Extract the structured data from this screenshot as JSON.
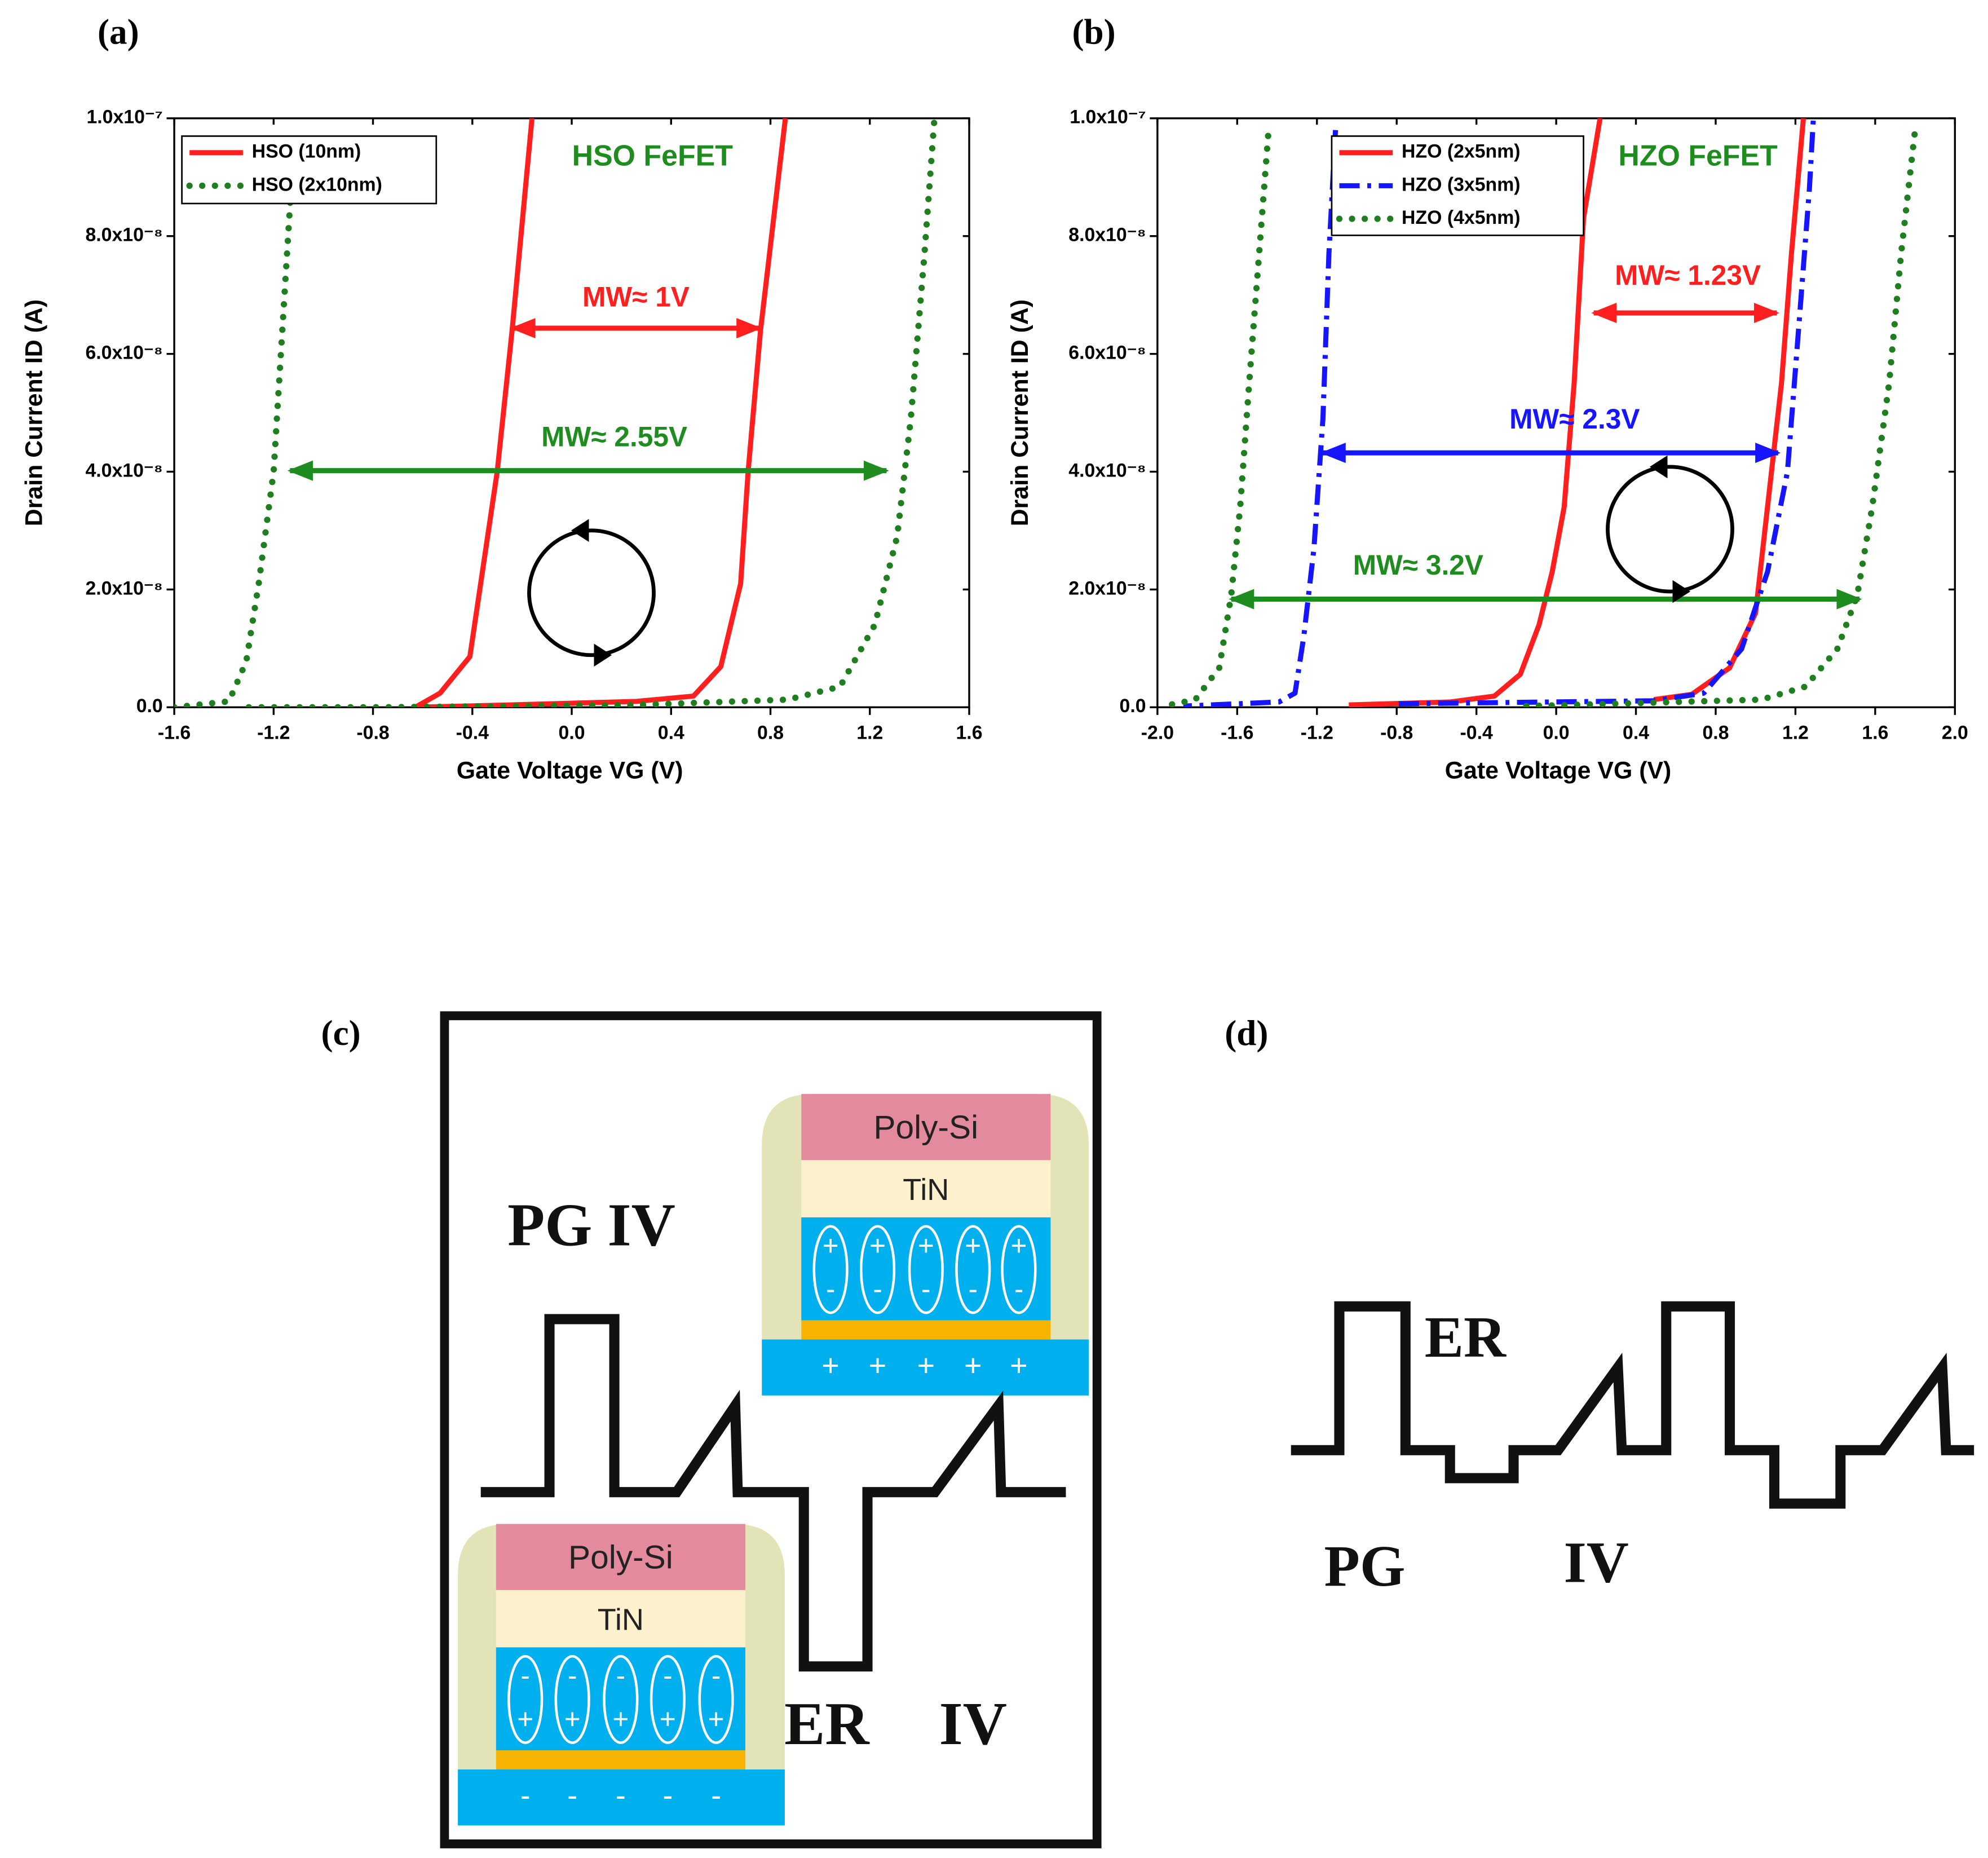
{
  "chart_data": [
    {
      "type": "line",
      "title": "(a)",
      "x_label": "Gate Voltage VG (V)",
      "y_label": "Drain Current ID (A)",
      "xlim": [
        -1.6,
        1.6
      ],
      "xticks": [
        -1.6,
        -1.2,
        -0.8,
        -0.4,
        {
          "value": 0,
          "label": "0.0"
        },
        0.4,
        0.8,
        1.2,
        1.6
      ],
      "ylim": [
        0,
        1e-07
      ],
      "yticks": [
        {
          "value": 0,
          "label": "0.0"
        },
        {
          "value": 2e-08,
          "label": "2.0x10⁻⁸"
        },
        {
          "value": 4e-08,
          "label": "4.0x10⁻⁸"
        },
        {
          "value": 6e-08,
          "label": "6.0x10⁻⁸"
        },
        {
          "value": 8e-08,
          "label": "8.0x10⁻⁸"
        },
        {
          "value": 1e-07,
          "label": "1.0x10⁻⁷"
        }
      ],
      "legend": "upper left",
      "series": [
        {
          "name": "HSO (10nm)",
          "color": "#ff1f1f",
          "style": "solid",
          "x": [
            -0.16,
            -0.24,
            -0.3,
            -0.41,
            -0.53,
            -0.63,
            -0.25,
            0.26,
            0.49,
            0.6,
            0.68,
            0.71,
            0.76,
            0.86
          ],
          "values": [
            1e-07,
            6.4e-08,
            4e-08,
            8.6e-09,
            2.4e-09,
            0,
            4e-10,
            1e-09,
            1.9e-09,
            6.9e-09,
            2.1e-08,
            4e-08,
            6.4e-08,
            1e-07
          ]
        },
        {
          "name": "HSO (2x10nm)",
          "color": "#1f7f1f",
          "style": "dotted",
          "x": [
            -1.6,
            -1.38,
            -1.31,
            -1.26,
            -1.2,
            -1.165,
            -1.13,
            null,
            -1.3,
            -0.77,
            0.26,
            0.87,
            1.08,
            1.22,
            1.31,
            1.365,
            1.42,
            1.46
          ],
          "values": [
            0,
            1e-09,
            7.8e-09,
            2.1e-08,
            4e-08,
            6.4e-08,
            8.8e-08,
            null,
            0,
            0,
            4e-10,
            1.3e-09,
            3.5e-09,
            1.4e-08,
            2.9e-08,
            4.9e-08,
            7.7e-08,
            1e-07
          ]
        }
      ],
      "annotations": [
        {
          "text": "HSO FeFET",
          "color": "#1e8c1e"
        },
        {
          "text": "MW≈ 1V",
          "color": "#ff1f1f"
        },
        {
          "text": "MW≈ 2.55V",
          "color": "#1e8c1e"
        }
      ]
    },
    {
      "type": "line",
      "title": "(b)",
      "x_label": "Gate Voltage VG (V)",
      "y_label": "Drain Current ID (A)",
      "xlim": [
        -2,
        2
      ],
      "xticks": [
        {
          "value": -2,
          "label": "-2.0"
        },
        -1.6,
        -1.2,
        -0.8,
        -0.4,
        {
          "value": 0,
          "label": "0.0"
        },
        0.4,
        0.8,
        1.2,
        1.6,
        {
          "value": 2,
          "label": "2.0"
        }
      ],
      "ylim": [
        0,
        1e-07
      ],
      "yticks": [
        {
          "value": 0,
          "label": "0.0"
        },
        {
          "value": 2e-08,
          "label": "2.0x10⁻⁸"
        },
        {
          "value": 4e-08,
          "label": "4.0x10⁻⁸"
        },
        {
          "value": 6e-08,
          "label": "6.0x10⁻⁸"
        },
        {
          "value": 8e-08,
          "label": "8.0x10⁻⁸"
        },
        {
          "value": 1e-07,
          "label": "1.0x10⁻⁷"
        }
      ],
      "legend": "upper left",
      "series": [
        {
          "name": "HZO (2x5nm)",
          "color": "#ff1f1f",
          "style": "solid",
          "x": [
            0.22,
            0.137,
            0.09,
            0.04,
            -0.02,
            -0.086,
            -0.18,
            -0.31,
            -0.53,
            -1.04,
            null,
            0.49,
            0.68,
            0.87,
            1.0,
            1.06,
            1.13,
            1.18,
            1.24
          ],
          "values": [
            1e-07,
            8.3e-08,
            5.5e-08,
            3.4e-08,
            2.3e-08,
            1.4e-08,
            5.6e-09,
            1.9e-09,
            9e-10,
            4e-10,
            null,
            1.3e-09,
            2.2e-09,
            6.7e-09,
            1.6e-08,
            3.4e-08,
            5.5e-08,
            7.7e-08,
            1e-07
          ]
        },
        {
          "name": "HZO (3x5nm)",
          "color": "#1515ff",
          "style": "dashdot",
          "x": [
            -1.107,
            -1.14,
            -1.17,
            -1.215,
            -1.266,
            -1.31,
            -1.39,
            -1.87,
            null,
            -0.79,
            0.49,
            0.74,
            0.93,
            1.06,
            1.16,
            1.22,
            1.27,
            1.29
          ],
          "values": [
            9.8e-08,
            7.7e-08,
            4.9e-08,
            2.7e-08,
            1.2e-08,
            2.4e-09,
            9e-10,
            2e-10,
            null,
            6e-10,
            1.1e-09,
            2.4e-09,
            9.9e-09,
            2.3e-08,
            4e-08,
            6.6e-08,
            8.8e-08,
            1e-07
          ]
        },
        {
          "name": "HZO (4x5nm)",
          "color": "#1f7f1f",
          "style": "dotted",
          "x": [
            -1.445,
            -1.49,
            -1.54,
            -1.585,
            -1.63,
            -1.69,
            -1.81,
            -1.97,
            null,
            -0.15,
            1.03,
            1.25,
            1.41,
            1.51,
            1.585,
            1.67,
            1.73,
            1.8
          ],
          "values": [
            9.7e-08,
            7.7e-08,
            5.5e-08,
            3.4e-08,
            1.9e-08,
            6.7e-09,
            1.3e-09,
            2e-10,
            null,
            2e-10,
            1.3e-09,
            3.5e-09,
            9.9e-09,
            1.9e-08,
            3.4e-08,
            5.5e-08,
            7.7e-08,
            9.8e-08
          ]
        }
      ],
      "annotations": [
        {
          "text": "HZO FeFET",
          "color": "#1e8c1e"
        },
        {
          "text": "MW≈ 1.23V",
          "color": "#ff1f1f"
        },
        {
          "text": "MW≈ 2.3V",
          "color": "#1515ff"
        },
        {
          "text": "MW≈ 3.2V",
          "color": "#1e8c1e"
        }
      ]
    }
  ],
  "diagram_c": {
    "title": "(c)",
    "labels": [
      "PG IV",
      "ER",
      "IV"
    ],
    "devices": [
      {
        "layers": [
          "Poly-Si",
          "TiN"
        ],
        "dipole": [
          "+",
          "-"
        ],
        "substrate": "+"
      },
      {
        "layers": [
          "Poly-Si",
          "TiN"
        ],
        "dipole": [
          "-",
          "+"
        ],
        "substrate": "-"
      }
    ]
  },
  "diagram_d": {
    "title": "(d)",
    "labels": [
      "ER",
      "PG",
      "IV"
    ]
  }
}
